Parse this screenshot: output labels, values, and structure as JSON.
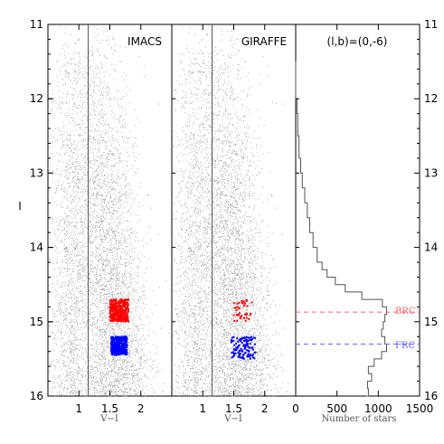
{
  "chart_data": [
    {
      "type": "scatter",
      "label": "IMACS",
      "xlabel": "V−I",
      "ylabel": "I",
      "xlim": [
        0.5,
        2.5
      ],
      "ylim": [
        16,
        11
      ],
      "x_ticks": [
        "1",
        "1.5",
        "2"
      ],
      "y_ticks": [
        "11",
        "12",
        "13",
        "14",
        "15",
        "16"
      ],
      "vertical_line_x": 1.15,
      "series": [
        {
          "group": "field",
          "color": "#a0a0a0",
          "description": "dense gray field stars"
        },
        {
          "group": "BRC",
          "color": "#ff0000",
          "x_range": [
            1.5,
            1.8
          ],
          "y_range": [
            14.7,
            15.0
          ]
        },
        {
          "group": "FRC",
          "color": "#0000ff",
          "x_range": [
            1.52,
            1.78
          ],
          "y_range": [
            15.2,
            15.45
          ]
        }
      ]
    },
    {
      "type": "scatter",
      "label": "GIRAFFE",
      "xlabel": "V−I",
      "xlim": [
        0.5,
        2.5
      ],
      "ylim": [
        16,
        11
      ],
      "x_ticks": [
        "1",
        "1.5",
        "2"
      ],
      "vertical_line_x": 1.15,
      "series": [
        {
          "group": "field",
          "color": "#a0a0a0",
          "description": "dense gray field stars"
        },
        {
          "group": "BRC",
          "color": "#ff0000",
          "x_range": [
            1.5,
            1.8
          ],
          "y_range": [
            14.7,
            15.0
          ]
        },
        {
          "group": "FRC",
          "color": "#0000ff",
          "x_range": [
            1.45,
            1.85
          ],
          "y_range": [
            15.2,
            15.5
          ]
        }
      ]
    },
    {
      "type": "line",
      "label": "(l,b)=(0,-6)",
      "xlabel": "Number of stars",
      "xlim": [
        0,
        1500
      ],
      "ylim": [
        16,
        11
      ],
      "x_ticks": [
        "0",
        "500",
        "1000",
        "1500"
      ],
      "y_ticks": [
        "11",
        "12",
        "13",
        "14",
        "15",
        "16"
      ],
      "histogram": {
        "I": [
          11.5,
          12.0,
          12.2,
          12.5,
          12.8,
          13.0,
          13.2,
          13.4,
          13.6,
          13.8,
          14.0,
          14.2,
          14.3,
          14.4,
          14.5,
          14.6,
          14.7,
          14.8,
          14.9,
          15.0,
          15.1,
          15.2,
          15.3,
          15.4,
          15.5,
          15.6,
          15.7,
          15.8,
          15.9,
          16.0
        ],
        "counts": [
          0,
          15,
          25,
          40,
          60,
          80,
          110,
          140,
          170,
          210,
          260,
          320,
          380,
          480,
          600,
          800,
          1050,
          1100,
          1080,
          1060,
          1040,
          1080,
          1100,
          1040,
          950,
          880,
          920,
          870,
          880,
          850
        ]
      },
      "reference_lines": [
        {
          "label": "BRC",
          "I": 14.87,
          "color": "#ff6666"
        },
        {
          "label": "FRC",
          "I": 15.3,
          "color": "#6666ff"
        }
      ]
    }
  ]
}
